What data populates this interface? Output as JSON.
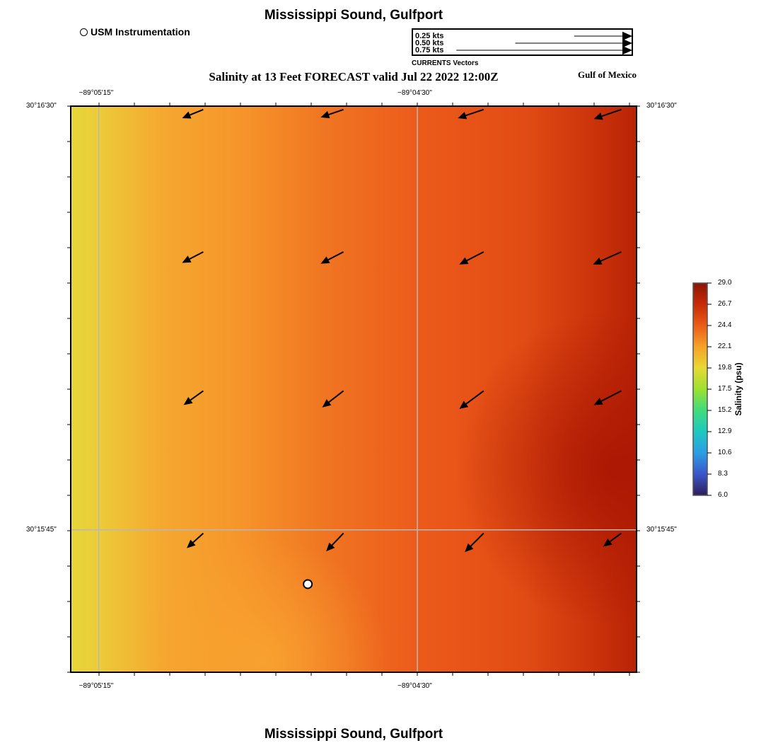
{
  "header": {
    "title": "Mississippi Sound, Gulfport",
    "subtitle": "Salinity at 13 Feet FORECAST valid Jul 22 2022 12:00Z",
    "region": "Gulf of Mexico",
    "footer_title": "Mississippi Sound, Gulfport"
  },
  "legend": {
    "instrument_label": "USM Instrumentation",
    "vector_caption": "CURRENTS Vectors",
    "vector_scales": [
      {
        "label": "0.25 kts",
        "speed_kts": 0.25
      },
      {
        "label": "0.50 kts",
        "speed_kts": 0.5
      },
      {
        "label": "0.75 kts",
        "speed_kts": 0.75
      }
    ]
  },
  "map": {
    "lon_ticks": [
      {
        "label": "−89°05'15\"",
        "lon": -89.0875
      },
      {
        "label": "−89°04'30\"",
        "lon": -89.075
      }
    ],
    "lat_ticks": [
      {
        "label": "30°16'30\"",
        "lat": 30.275
      },
      {
        "label": "30°15'45\"",
        "lat": 30.2625
      }
    ],
    "extent": {
      "lon_min": -89.0886,
      "lon_max": -89.0664,
      "lat_min": 30.2583,
      "lat_max": 30.275
    },
    "instrument_station": {
      "lon": -89.0793,
      "lat": 30.2609
    },
    "current_vectors": [
      {
        "lon": -89.0834,
        "lat": 30.2749,
        "u_kts": -0.27,
        "v_kts": -0.11
      },
      {
        "lon": -89.0779,
        "lat": 30.2749,
        "u_kts": -0.29,
        "v_kts": -0.1
      },
      {
        "lon": -89.0724,
        "lat": 30.2749,
        "u_kts": -0.33,
        "v_kts": -0.11
      },
      {
        "lon": -89.067,
        "lat": 30.2749,
        "u_kts": -0.35,
        "v_kts": -0.12
      },
      {
        "lon": -89.0834,
        "lat": 30.2707,
        "u_kts": -0.27,
        "v_kts": -0.14
      },
      {
        "lon": -89.0779,
        "lat": 30.2707,
        "u_kts": -0.29,
        "v_kts": -0.15
      },
      {
        "lon": -89.0724,
        "lat": 30.2707,
        "u_kts": -0.31,
        "v_kts": -0.16
      },
      {
        "lon": -89.067,
        "lat": 30.2707,
        "u_kts": -0.36,
        "v_kts": -0.16
      },
      {
        "lon": -89.0834,
        "lat": 30.2666,
        "u_kts": -0.25,
        "v_kts": -0.18
      },
      {
        "lon": -89.0779,
        "lat": 30.2666,
        "u_kts": -0.27,
        "v_kts": -0.21
      },
      {
        "lon": -89.0724,
        "lat": 30.2666,
        "u_kts": -0.31,
        "v_kts": -0.23
      },
      {
        "lon": -89.067,
        "lat": 30.2666,
        "u_kts": -0.35,
        "v_kts": -0.18
      },
      {
        "lon": -89.0834,
        "lat": 30.2624,
        "u_kts": -0.21,
        "v_kts": -0.19
      },
      {
        "lon": -89.0779,
        "lat": 30.2624,
        "u_kts": -0.22,
        "v_kts": -0.23
      },
      {
        "lon": -89.0724,
        "lat": 30.2624,
        "u_kts": -0.24,
        "v_kts": -0.24
      },
      {
        "lon": -89.067,
        "lat": 30.2624,
        "u_kts": -0.23,
        "v_kts": -0.17
      }
    ]
  },
  "colorbar": {
    "title": "Salinity (psu)",
    "min": 6.0,
    "max": 29.0,
    "tick_labels": [
      "29.0",
      "26.7",
      "24.4",
      "22.1",
      "19.8",
      "17.5",
      "15.2",
      "12.9",
      "10.6",
      "8.3",
      "6.0"
    ],
    "colors": [
      "#2d1e5a",
      "#3a56c9",
      "#2b9de5",
      "#1fc8c0",
      "#3fdc7d",
      "#9ce031",
      "#e7d935",
      "#f6a227",
      "#ea5c17",
      "#c62a07",
      "#8c1405"
    ]
  }
}
